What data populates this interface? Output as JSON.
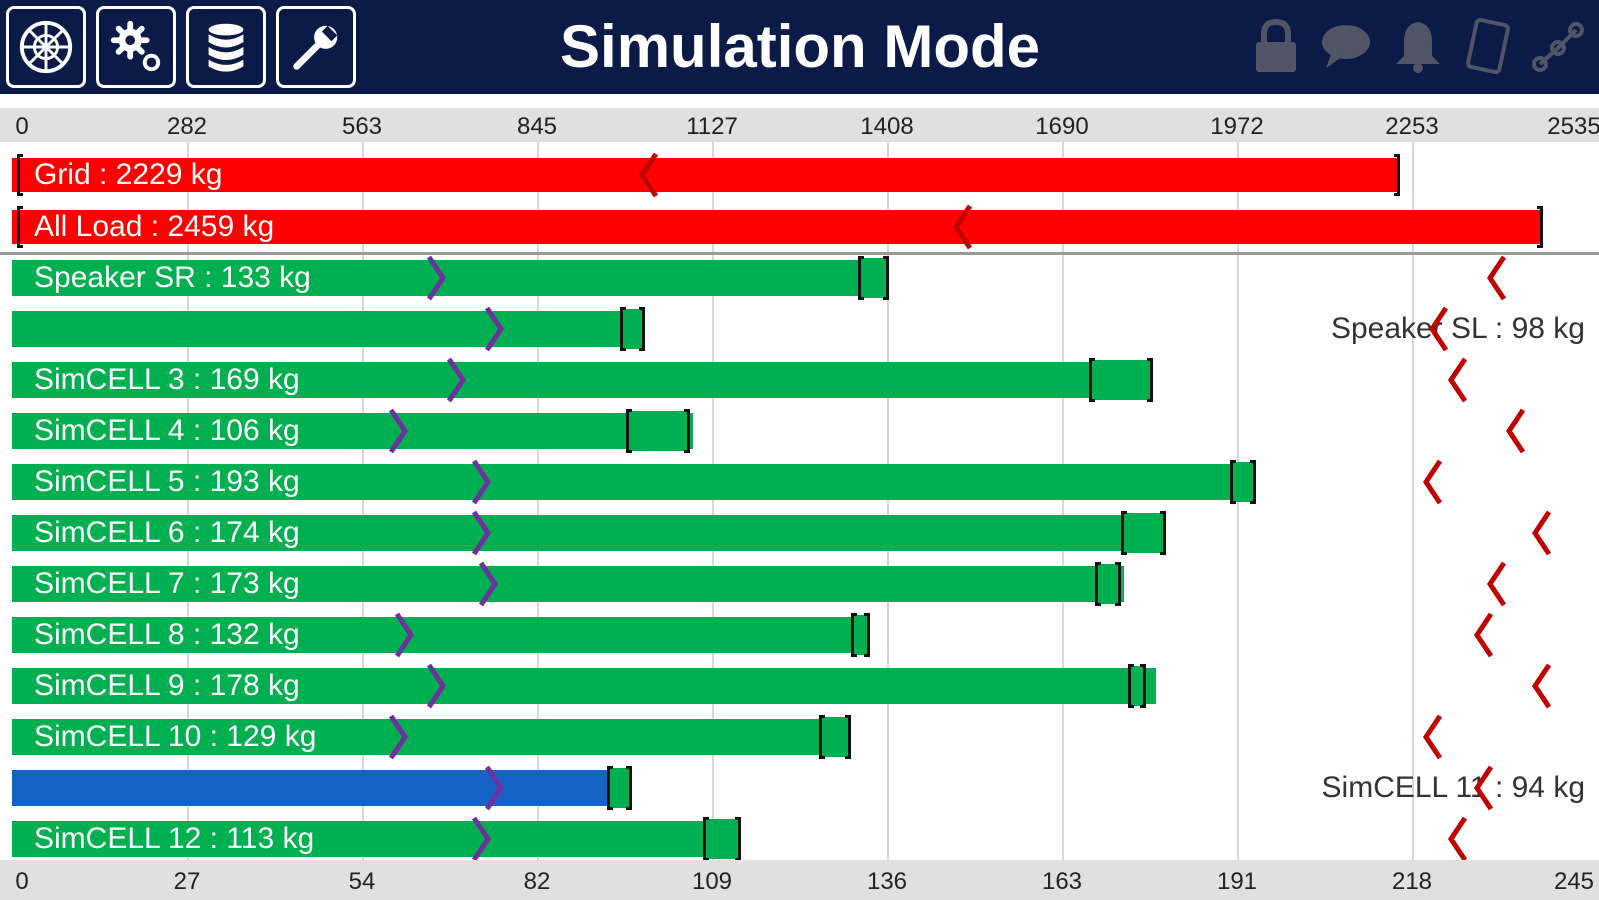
{
  "header": {
    "title": "Simulation Mode",
    "left_buttons": [
      {
        "icon": "network-globe-icon"
      },
      {
        "icon": "gear-icon"
      },
      {
        "icon": "database-icon"
      },
      {
        "icon": "wrench-icon"
      }
    ],
    "status_icons": [
      "lock-icon",
      "chat-bubble-icon",
      "bell-icon",
      "tablet-icon",
      "connection-nodes-icon"
    ]
  },
  "colors": {
    "header_bg": "#0b1b48",
    "limit_bar": "#ff0000",
    "cell_bar": "#00b050",
    "selected_bar": "#1464c6",
    "axis_bg": "#e0e0e0",
    "marker_purple": "#7030a0",
    "marker_red": "#c00000"
  },
  "chart_data": {
    "type": "bar",
    "orientation": "horizontal",
    "top_axis": {
      "ticks": [
        "0",
        "282",
        "563",
        "845",
        "1127",
        "1408",
        "1690",
        "1972",
        "2253",
        "2535"
      ],
      "range": [
        0,
        2535
      ]
    },
    "bottom_axis": {
      "ticks": [
        "0",
        "27",
        "54",
        "82",
        "109",
        "136",
        "163",
        "191",
        "218",
        "245"
      ],
      "range": [
        0,
        245
      ]
    },
    "totals": [
      {
        "label": "Grid : 2229 kg",
        "value": 2229,
        "marker": 1025,
        "bracket": [
          0,
          2229
        ]
      },
      {
        "label": "All Load : 2459 kg",
        "value": 2459,
        "marker": 1530,
        "bracket": [
          0,
          2459
        ]
      }
    ],
    "cells": [
      {
        "label": "Speaker SR : 133 kg",
        "value": 133,
        "color": "green",
        "label_inside": true,
        "purple": 66,
        "bracket": [
          132,
          136
        ],
        "red": 231
      },
      {
        "label": "Speaker SL : 98 kg",
        "value": 98,
        "color": "green",
        "label_inside": false,
        "purple": 75,
        "bracket": [
          95,
          98
        ],
        "red": 222
      },
      {
        "label": "SimCELL 3 : 169 kg",
        "value": 169,
        "color": "green",
        "label_inside": true,
        "purple": 69,
        "bracket": [
          168,
          177
        ],
        "red": 225
      },
      {
        "label": "SimCELL 4 : 106 kg",
        "value": 106,
        "color": "green",
        "label_inside": true,
        "purple": 60,
        "bracket": [
          96,
          105
        ],
        "red": 234
      },
      {
        "label": "SimCELL 5 : 193 kg",
        "value": 193,
        "color": "green",
        "label_inside": true,
        "purple": 73,
        "bracket": [
          190,
          193
        ],
        "red": 221
      },
      {
        "label": "SimCELL 6 : 174 kg",
        "value": 174,
        "color": "green",
        "label_inside": true,
        "purple": 73,
        "bracket": [
          173,
          179
        ],
        "red": 238
      },
      {
        "label": "SimCELL 7 : 173 kg",
        "value": 173,
        "color": "green",
        "label_inside": true,
        "purple": 74,
        "bracket": [
          169,
          172
        ],
        "red": 231
      },
      {
        "label": "SimCELL 8 : 132 kg",
        "value": 132,
        "color": "green",
        "label_inside": true,
        "purple": 61,
        "bracket": [
          131,
          133
        ],
        "red": 229
      },
      {
        "label": "SimCELL 9 : 178 kg",
        "value": 178,
        "color": "green",
        "label_inside": true,
        "purple": 66,
        "bracket": [
          174,
          176
        ],
        "red": 238
      },
      {
        "label": "SimCELL 10 : 129 kg",
        "value": 129,
        "color": "green",
        "label_inside": true,
        "purple": 60,
        "bracket": [
          126,
          130
        ],
        "red": 221
      },
      {
        "label": "SimCELL 11 : 94 kg",
        "value": 94,
        "color": "blue",
        "label_inside": false,
        "purple": 75,
        "bracket": [
          93,
          96
        ],
        "red": 229
      },
      {
        "label": "SimCELL 12 : 113 kg",
        "value": 113,
        "color": "green",
        "label_inside": true,
        "purple": 73,
        "bracket": [
          108,
          113
        ],
        "red": 225
      }
    ]
  }
}
